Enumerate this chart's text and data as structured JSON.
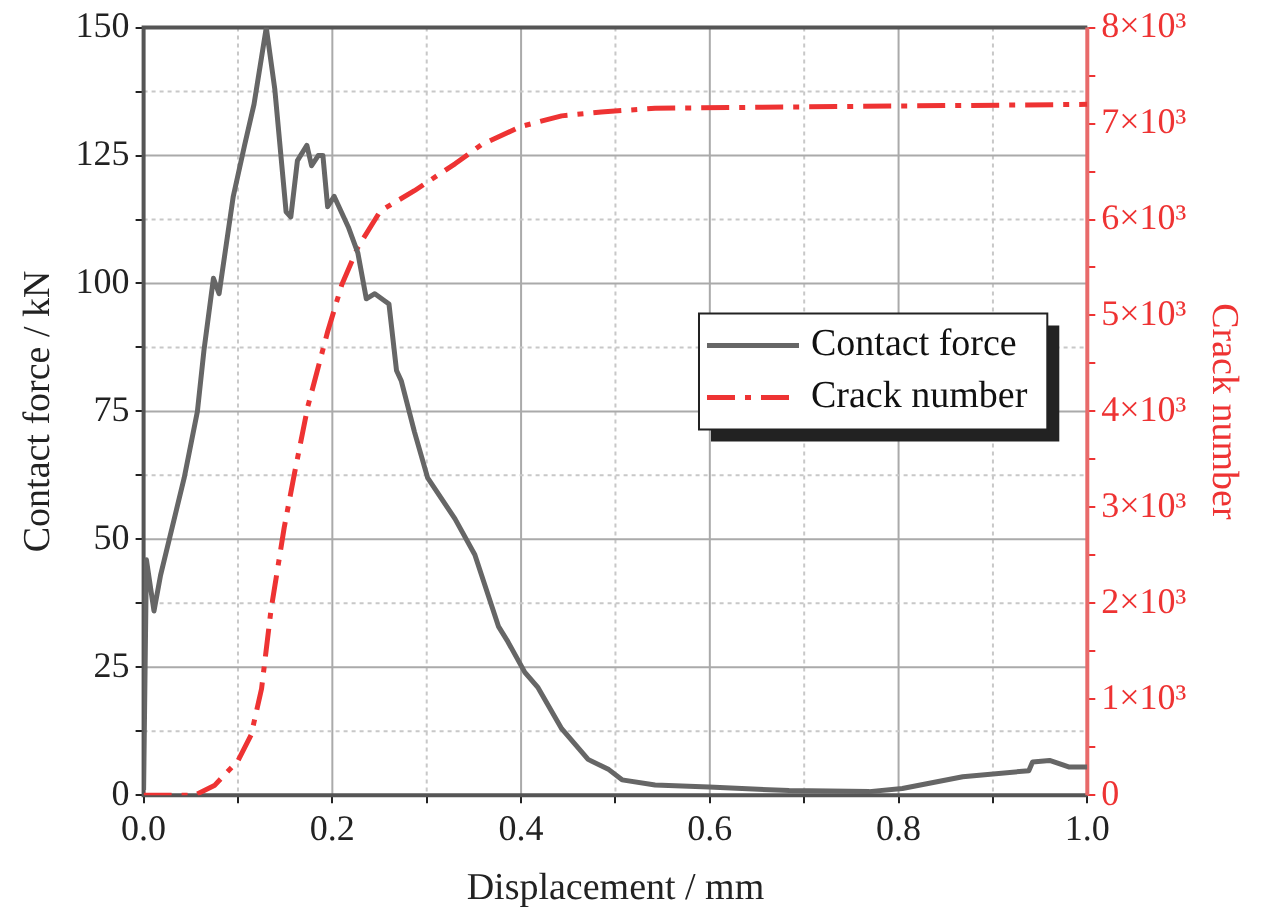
{
  "chart_data": {
    "type": "line",
    "xlabel": "Displacement / mm",
    "ylabel": "Contact force / kN",
    "y2label": "Crack number",
    "xlim": [
      0,
      1
    ],
    "xticks": [
      {
        "value": 0,
        "label": "0.0"
      },
      {
        "value": 0.1,
        "label": null
      },
      {
        "value": 0.2,
        "label": "0.2"
      },
      {
        "value": 0.3,
        "label": null
      },
      {
        "value": 0.4,
        "label": "0.4"
      },
      {
        "value": 0.5,
        "label": null
      },
      {
        "value": 0.6,
        "label": "0.6"
      },
      {
        "value": 0.7,
        "label": null
      },
      {
        "value": 0.8,
        "label": "0.8"
      },
      {
        "value": 0.9,
        "label": null
      },
      {
        "value": 1,
        "label": "1.0"
      }
    ],
    "ylim": [
      0,
      150
    ],
    "yticks": [
      0,
      {
        "value": 12.5,
        "label": null
      },
      25,
      {
        "value": 37.5,
        "label": null
      },
      50,
      {
        "value": 62.5,
        "label": null
      },
      75,
      {
        "value": 87.5,
        "label": null
      },
      100,
      {
        "value": 112.5,
        "label": null
      },
      125,
      {
        "value": 137.5,
        "label": null
      },
      150
    ],
    "y2lim": [
      0,
      8000
    ],
    "y2ticks": [
      0,
      {
        "value": 500,
        "label": null
      },
      {
        "value": 1000,
        "label": "1×10³"
      },
      {
        "value": 1500,
        "label": null
      },
      {
        "value": 2000,
        "label": "2×10³"
      },
      {
        "value": 2500,
        "label": null
      },
      {
        "value": 3000,
        "label": "3×10³"
      },
      {
        "value": 3500,
        "label": null
      },
      {
        "value": 4000,
        "label": "4×10³"
      },
      {
        "value": 4500,
        "label": null
      },
      {
        "value": 5000,
        "label": "5×10³"
      },
      {
        "value": 5500,
        "label": null
      },
      {
        "value": 6000,
        "label": "6×10³"
      },
      {
        "value": 6500,
        "label": null
      },
      {
        "value": 7000,
        "label": "7×10³"
      },
      {
        "value": 7500,
        "label": null
      },
      {
        "value": 8000,
        "label": "8×10³"
      }
    ],
    "grid": true,
    "legend": "right",
    "marker": "none",
    "series": [
      {
        "name": "Contact force",
        "color": "#666666",
        "line_style": "solid",
        "x": [
          0,
          0.003,
          0.011,
          0.018,
          0.043,
          0.057,
          0.064,
          0.074,
          0.08,
          0.095,
          0.107,
          0.117,
          0.13,
          0.139,
          0.151,
          0.156,
          0.163,
          0.173,
          0.178,
          0.185,
          0.19,
          0.195,
          0.202,
          0.217,
          0.227,
          0.236,
          0.245,
          0.26,
          0.268,
          0.273,
          0.287,
          0.301,
          0.33,
          0.351,
          0.376,
          0.386,
          0.404,
          0.418,
          0.443,
          0.471,
          0.493,
          0.507,
          0.542,
          0.599,
          0.684,
          0.769,
          0.804,
          0.868,
          0.938,
          0.942,
          0.96,
          0.981,
          1
        ],
        "values": [
          1,
          46,
          36,
          43,
          62,
          75,
          87,
          101,
          98,
          117,
          127,
          135,
          150,
          138,
          114,
          113,
          124,
          127,
          123,
          125,
          125,
          115,
          117,
          111,
          106,
          97,
          98,
          96,
          83,
          81,
          71,
          62,
          54,
          47,
          33,
          30,
          24,
          21,
          13,
          7,
          5,
          3,
          2,
          1.6,
          0.9,
          0.7,
          1.3,
          3.6,
          4.8,
          6.5,
          6.8,
          5.5,
          5.5
        ]
      },
      {
        "name": "Crack number",
        "color": "#ee3333",
        "axis": "y2",
        "line_style": "dashed",
        "x": [
          0,
          0.054,
          0.075,
          0.1,
          0.114,
          0.125,
          0.135,
          0.149,
          0.16,
          0.174,
          0.195,
          0.21,
          0.227,
          0.251,
          0.287,
          0.33,
          0.358,
          0.4,
          0.443,
          0.485,
          0.542,
          1
        ],
        "values": [
          0,
          0,
          100,
          360,
          630,
          1110,
          1930,
          2790,
          3360,
          4050,
          4830,
          5320,
          5710,
          6090,
          6300,
          6580,
          6780,
          6970,
          7080,
          7120,
          7160,
          7200
        ]
      }
    ]
  }
}
